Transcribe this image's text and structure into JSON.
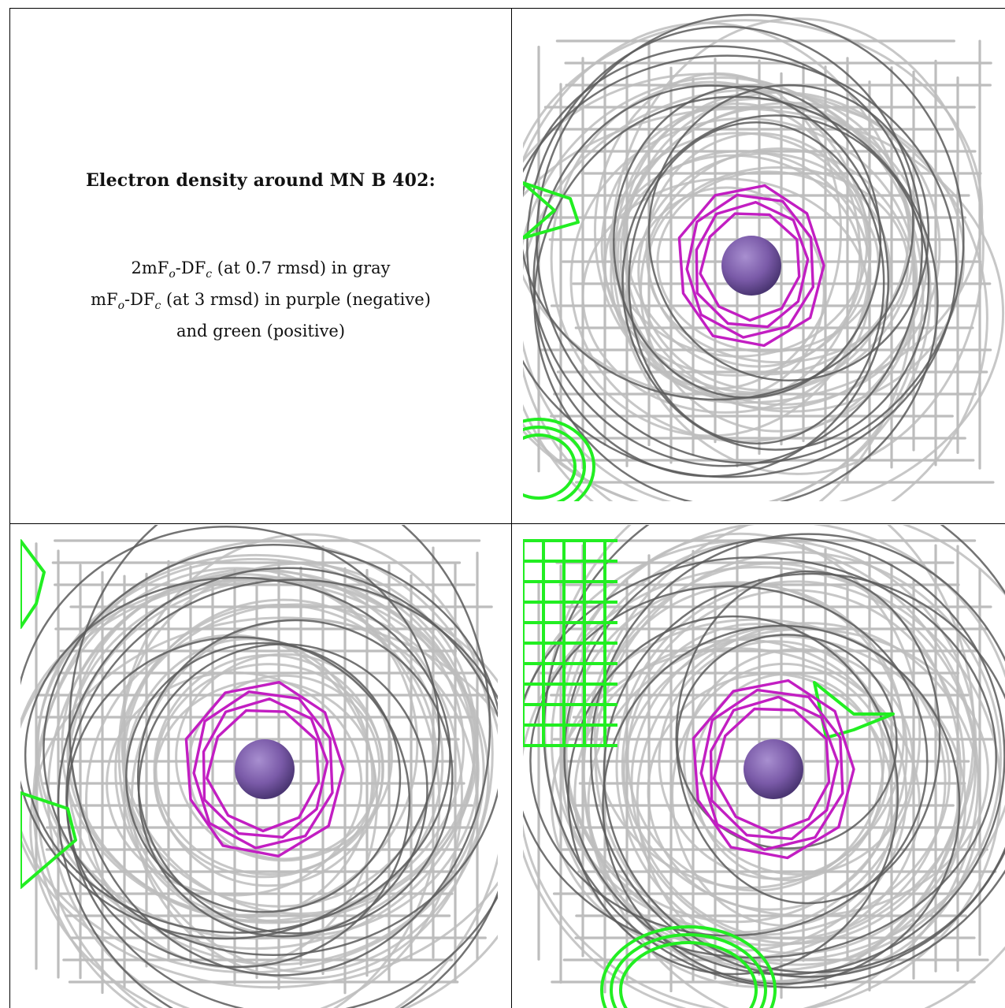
{
  "caption": {
    "title": "Electron density around MN B 402:",
    "line1_prefix": "2mF",
    "line1_sub1": "o",
    "line1_mid": "-DF",
    "line1_sub2": "c",
    "line1_suffix": " (at 0.7 rmsd) in gray",
    "line2_prefix": "mF",
    "line2_sub1": "o",
    "line2_mid": "-DF",
    "line2_sub2": "c",
    "line2_suffix": " (at 3 rmsd) in purple (negative)",
    "line3": "and green (positive)"
  },
  "colors": {
    "gray_mesh": "#bdbdbd",
    "gray_mesh_dark": "#5a5a5a",
    "negative_mesh": "#c21ec2",
    "positive_mesh": "#22ee22",
    "atom": "#7a5aa8"
  },
  "panels": [
    {
      "id": "view-1",
      "atom": "MN B 402"
    },
    {
      "id": "view-2",
      "atom": "MN B 402"
    },
    {
      "id": "view-3",
      "atom": "MN B 402"
    }
  ]
}
